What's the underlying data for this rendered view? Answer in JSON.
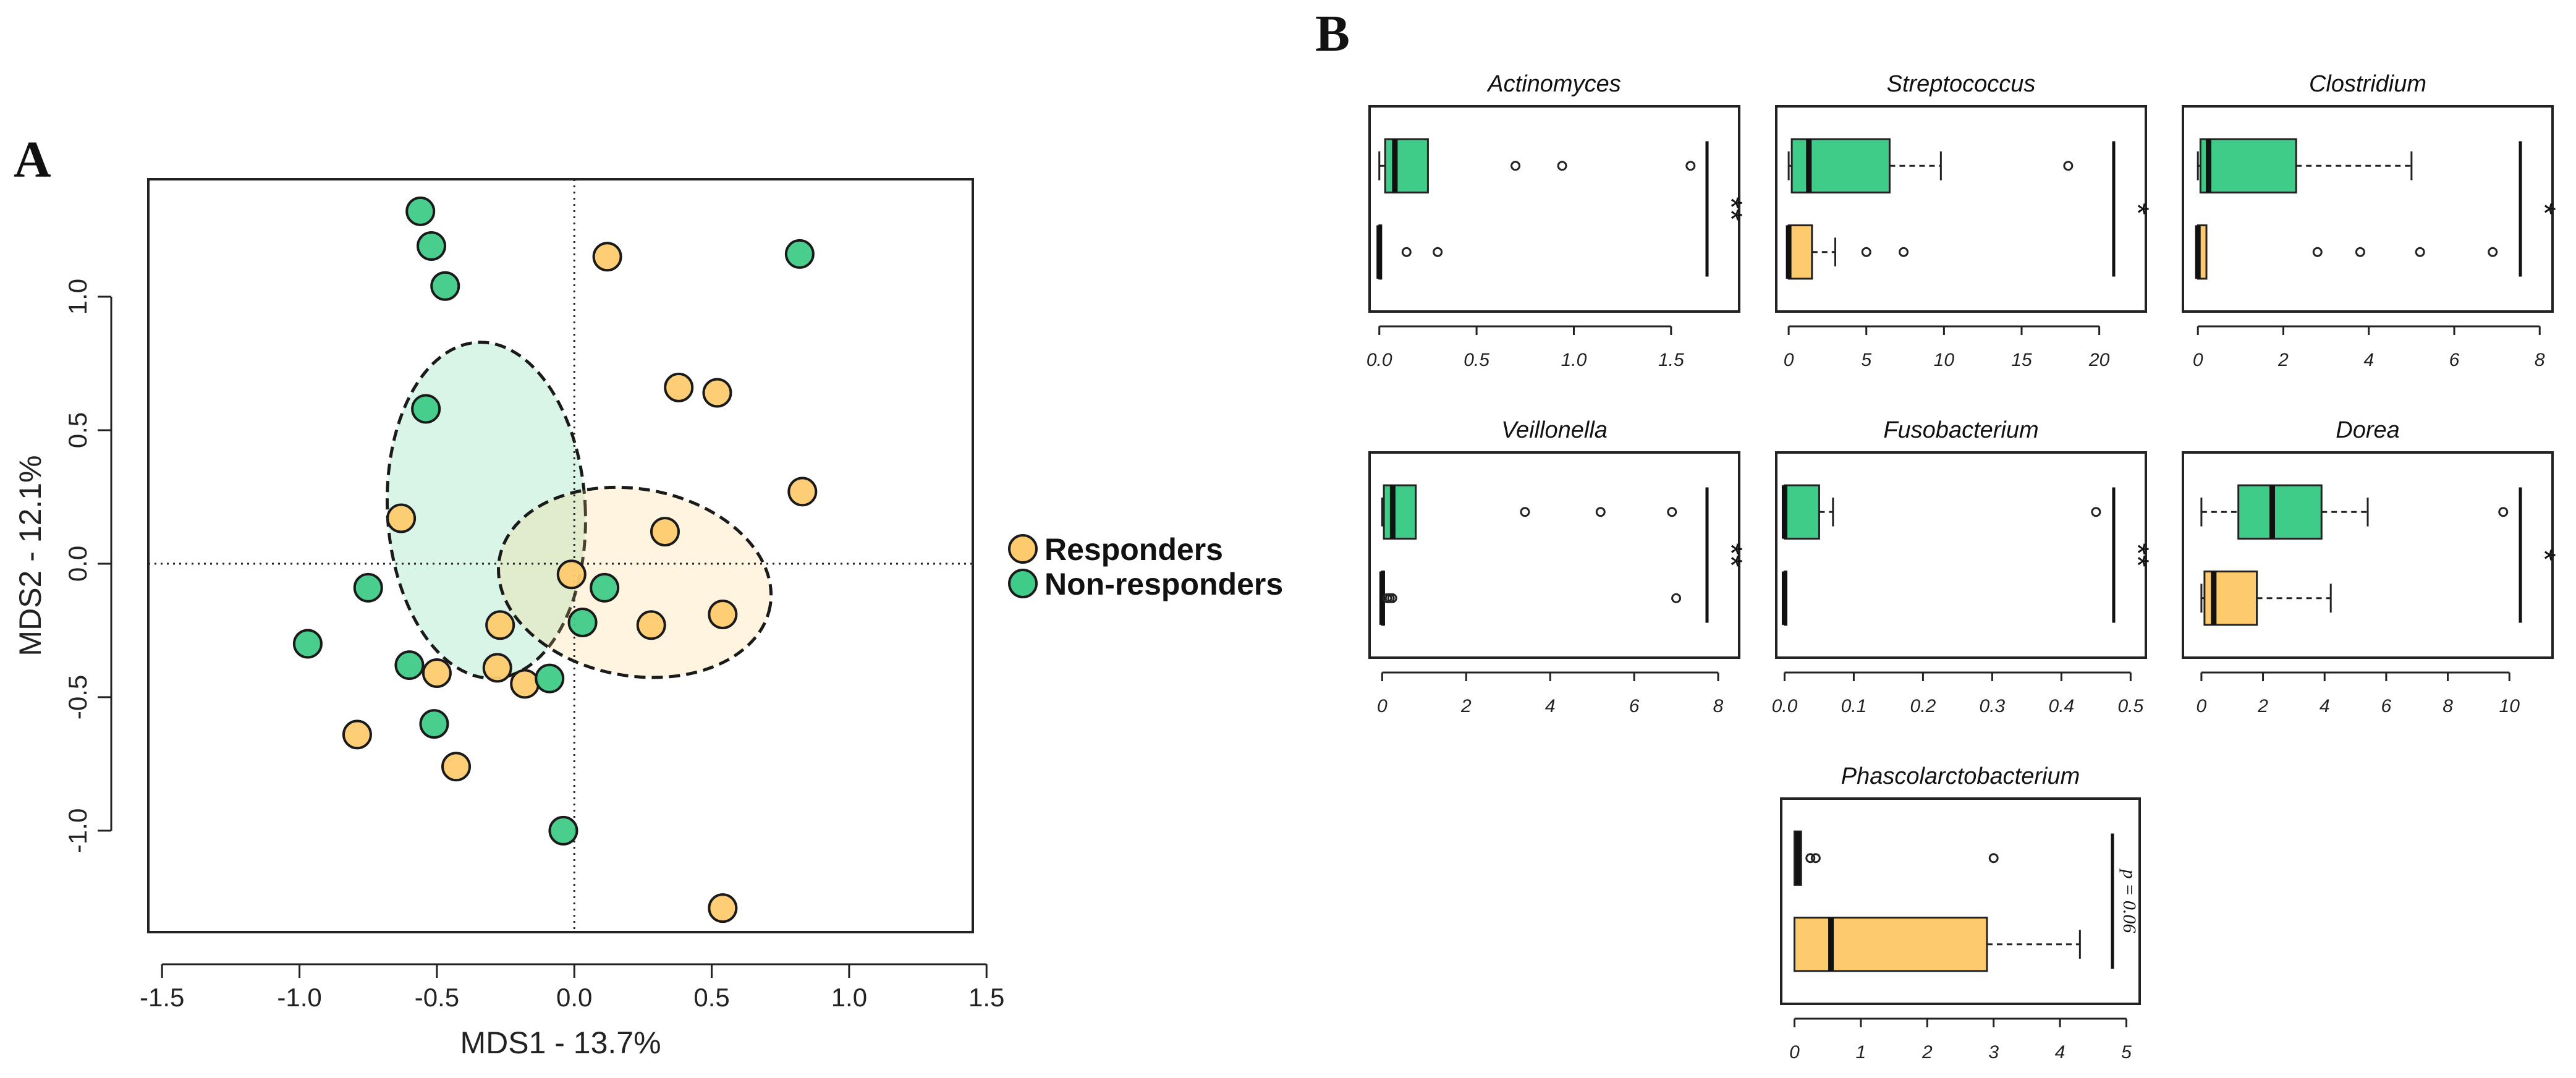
{
  "panel_labels": {
    "a": "A",
    "b": "B"
  },
  "colors": {
    "responders": "#FDCB6E",
    "nonresponders": "#3FCB88",
    "stroke": "#1a1a1a"
  },
  "legend": {
    "responders": "Responders",
    "nonresponders": "Non-responders"
  },
  "chart_data": [
    {
      "type": "scatter",
      "title": "",
      "xlabel": "MDS1 - 13.7%",
      "ylabel": "MDS2 - 12.1%",
      "xlim": [
        -1.55,
        1.45
      ],
      "ylim": [
        -1.38,
        1.44
      ],
      "xticks": [
        -1.5,
        -1.0,
        -0.5,
        0.0,
        0.5,
        1.0,
        1.5
      ],
      "xtick_labels": [
        "-1.5",
        "-1.0",
        "-0.5",
        "0.0",
        "0.5",
        "1.0",
        "1.5"
      ],
      "yticks": [
        -1.0,
        -0.5,
        0.0,
        0.5,
        1.0
      ],
      "ytick_labels": [
        "-1.0",
        "-0.5",
        "0.0",
        "0.5",
        "1.0"
      ],
      "reference_lines": {
        "x": 0,
        "y": 0
      },
      "series": [
        {
          "name": "Responders",
          "points": [
            [
              0.12,
              1.15
            ],
            [
              0.38,
              0.66
            ],
            [
              0.52,
              0.64
            ],
            [
              0.83,
              0.27
            ],
            [
              0.33,
              0.12
            ],
            [
              -0.63,
              0.17
            ],
            [
              -0.27,
              -0.23
            ],
            [
              -0.5,
              -0.41
            ],
            [
              -0.28,
              -0.39
            ],
            [
              -0.18,
              -0.45
            ],
            [
              -0.01,
              -0.04
            ],
            [
              0.28,
              -0.23
            ],
            [
              0.54,
              -0.19
            ],
            [
              -0.79,
              -0.64
            ],
            [
              -0.43,
              -0.76
            ],
            [
              0.54,
              -1.29
            ]
          ]
        },
        {
          "name": "Non-responders",
          "points": [
            [
              -0.56,
              1.32
            ],
            [
              -0.52,
              1.19
            ],
            [
              -0.47,
              1.04
            ],
            [
              0.82,
              1.16
            ],
            [
              -0.54,
              0.58
            ],
            [
              -0.75,
              -0.09
            ],
            [
              -0.97,
              -0.3
            ],
            [
              -0.6,
              -0.38
            ],
            [
              -0.51,
              -0.6
            ],
            [
              0.11,
              -0.09
            ],
            [
              0.03,
              -0.22
            ],
            [
              -0.09,
              -0.43
            ],
            [
              -0.04,
              -1.0
            ]
          ]
        }
      ],
      "ellipses": [
        {
          "name": "Non-responders",
          "center": [
            -0.32,
            0.2
          ],
          "radii": [
            0.36,
            0.63
          ],
          "angle_deg": -3
        },
        {
          "name": "Responders",
          "center": [
            0.22,
            -0.07
          ],
          "radii": [
            0.5,
            0.35
          ],
          "angle_deg": 10
        }
      ]
    },
    {
      "type": "boxplot",
      "title": "Actinomyces",
      "xlim": [
        -0.05,
        1.85
      ],
      "xticks": [
        "0.0",
        "0.5",
        "1.0",
        "1.5"
      ],
      "boxes": [
        {
          "group": "Non-responders",
          "min": 0,
          "q1": 0.03,
          "median": 0.08,
          "q3": 0.25,
          "max": 0.25,
          "outliers": [
            0.7,
            0.94,
            1.6
          ]
        },
        {
          "group": "Responders",
          "min": 0,
          "q1": 0,
          "median": 0,
          "q3": 0,
          "max": 0,
          "outliers": [
            0.14,
            0.3
          ]
        }
      ],
      "significance": "**"
    },
    {
      "type": "boxplot",
      "title": "Streptococcus",
      "xlim": [
        -0.8,
        23
      ],
      "xticks": [
        "0",
        "5",
        "10",
        "15",
        "20"
      ],
      "boxes": [
        {
          "group": "Non-responders",
          "min": 0,
          "q1": 0.2,
          "median": 1.3,
          "q3": 6.5,
          "max": 9.8,
          "outliers": [
            18
          ]
        },
        {
          "group": "Responders",
          "min": 0,
          "q1": 0,
          "median": 0,
          "q3": 1.5,
          "max": 3,
          "outliers": [
            5,
            7.4
          ]
        }
      ],
      "significance": "*"
    },
    {
      "type": "boxplot",
      "title": "Clostridium",
      "xlim": [
        -0.35,
        8.3
      ],
      "xticks": [
        "0",
        "2",
        "4",
        "6",
        "8"
      ],
      "boxes": [
        {
          "group": "Non-responders",
          "min": 0,
          "q1": 0.06,
          "median": 0.25,
          "q3": 2.3,
          "max": 5,
          "outliers": []
        },
        {
          "group": "Responders",
          "min": 0,
          "q1": 0,
          "median": 0,
          "q3": 0.2,
          "max": 0.2,
          "outliers": [
            2.8,
            3.8,
            5.2,
            6.9
          ]
        }
      ],
      "significance": "*"
    },
    {
      "type": "boxplot",
      "title": "Veillonella",
      "xlim": [
        -0.3,
        8.5
      ],
      "xticks": [
        "0",
        "2",
        "4",
        "6",
        "8"
      ],
      "boxes": [
        {
          "group": "Non-responders",
          "min": 0,
          "q1": 0.04,
          "median": 0.25,
          "q3": 0.8,
          "max": 0.8,
          "outliers": [
            3.4,
            5.2,
            6.9
          ]
        },
        {
          "group": "Responders",
          "min": 0,
          "q1": 0,
          "median": 0,
          "q3": 0,
          "max": 0,
          "outliers": [
            0.12,
            0.18,
            0.24,
            7
          ]
        }
      ],
      "significance": "**"
    },
    {
      "type": "boxplot",
      "title": "Fusobacterium",
      "xlim": [
        -0.012,
        0.522
      ],
      "xticks": [
        "0.0",
        "0.1",
        "0.2",
        "0.3",
        "0.4",
        "0.5"
      ],
      "boxes": [
        {
          "group": "Non-responders",
          "min": 0,
          "q1": 0,
          "median": 0,
          "q3": 0.05,
          "max": 0.07,
          "outliers": [
            0.45
          ]
        },
        {
          "group": "Responders",
          "min": 0,
          "q1": 0,
          "median": 0,
          "q3": 0,
          "max": 0,
          "outliers": []
        }
      ],
      "significance": "**"
    },
    {
      "type": "boxplot",
      "title": "Dorea",
      "xlim": [
        -0.6,
        11.4
      ],
      "xticks": [
        "0",
        "2",
        "4",
        "6",
        "8",
        "10"
      ],
      "boxes": [
        {
          "group": "Non-responders",
          "min": 0,
          "q1": 1.2,
          "median": 2.3,
          "q3": 3.9,
          "max": 5.4,
          "outliers": [
            9.8
          ]
        },
        {
          "group": "Responders",
          "min": 0,
          "q1": 0.1,
          "median": 0.4,
          "q3": 1.8,
          "max": 4.2,
          "outliers": []
        }
      ],
      "significance": "*"
    },
    {
      "type": "boxplot",
      "title": "Phascolarctobacterium",
      "xlim": [
        -0.2,
        5.2
      ],
      "xticks": [
        "0",
        "1",
        "2",
        "3",
        "4",
        "5"
      ],
      "boxes": [
        {
          "group": "Non-responders",
          "min": 0,
          "q1": 0,
          "median": 0.05,
          "q3": 0.1,
          "max": 0.1,
          "outliers": [
            0.24,
            0.32,
            3
          ]
        },
        {
          "group": "Responders",
          "min": 0,
          "q1": 0,
          "median": 0.55,
          "q3": 2.9,
          "max": 4.3,
          "outliers": []
        }
      ],
      "significance": "p = 0.06"
    }
  ]
}
